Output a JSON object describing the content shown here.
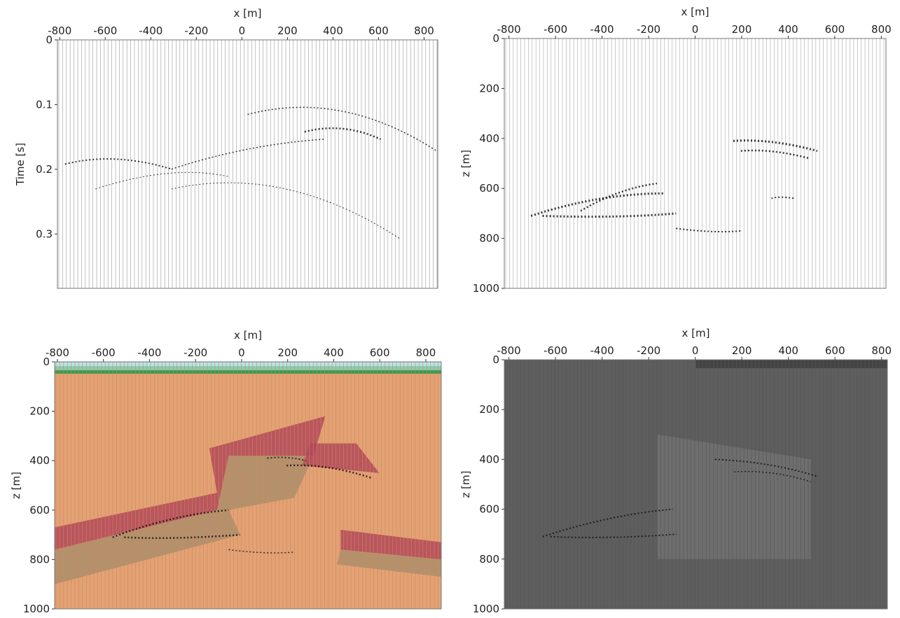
{
  "chart_data": [
    {
      "type": "seismic",
      "xlabel": "x [m]",
      "ylabel": "Time [s]",
      "xlim": [
        -810,
        860
      ],
      "xticks": [
        -800,
        -600,
        -400,
        -200,
        0,
        200,
        400,
        600,
        800
      ],
      "ylim": [
        0,
        0.384
      ],
      "yticks": [
        0,
        0.1,
        0.2,
        0.3
      ],
      "y_inverted": true,
      "background": "#ffffff",
      "trace_color": "#9a9a9a"
    },
    {
      "type": "seismic",
      "xlabel": "x [m]",
      "ylabel": "z [m]",
      "xlim": [
        -820,
        820
      ],
      "xticks": [
        -800,
        -600,
        -400,
        -200,
        0,
        200,
        400,
        600,
        800
      ],
      "ylim": [
        0,
        1000
      ],
      "yticks": [
        0,
        200,
        400,
        600,
        800,
        1000
      ],
      "y_inverted": true,
      "background": "#ffffff",
      "trace_color": "#a8a8a8"
    },
    {
      "type": "seismic",
      "xlabel": "x [m]",
      "ylabel": "z [m]",
      "xlim": [
        -812,
        867
      ],
      "xticks": [
        -800,
        -600,
        -400,
        -200,
        0,
        200,
        400,
        600,
        800
      ],
      "ylim": [
        0,
        1000
      ],
      "yticks": [
        0,
        200,
        400,
        600,
        800,
        1000
      ],
      "y_inverted": true,
      "background": "#e4a274",
      "trace_color": "#c98a5e"
    },
    {
      "type": "seismic",
      "xlabel": "x [m]",
      "ylabel": "z [m]",
      "xlim": [
        -820,
        825
      ],
      "xticks": [
        -800,
        -600,
        -400,
        -200,
        0,
        200,
        400,
        600,
        800
      ],
      "ylim": [
        0,
        1000
      ],
      "yticks": [
        0,
        200,
        400,
        600,
        800,
        1000
      ],
      "y_inverted": true,
      "background": "#5e5e5e",
      "trace_color": "#555555"
    }
  ]
}
